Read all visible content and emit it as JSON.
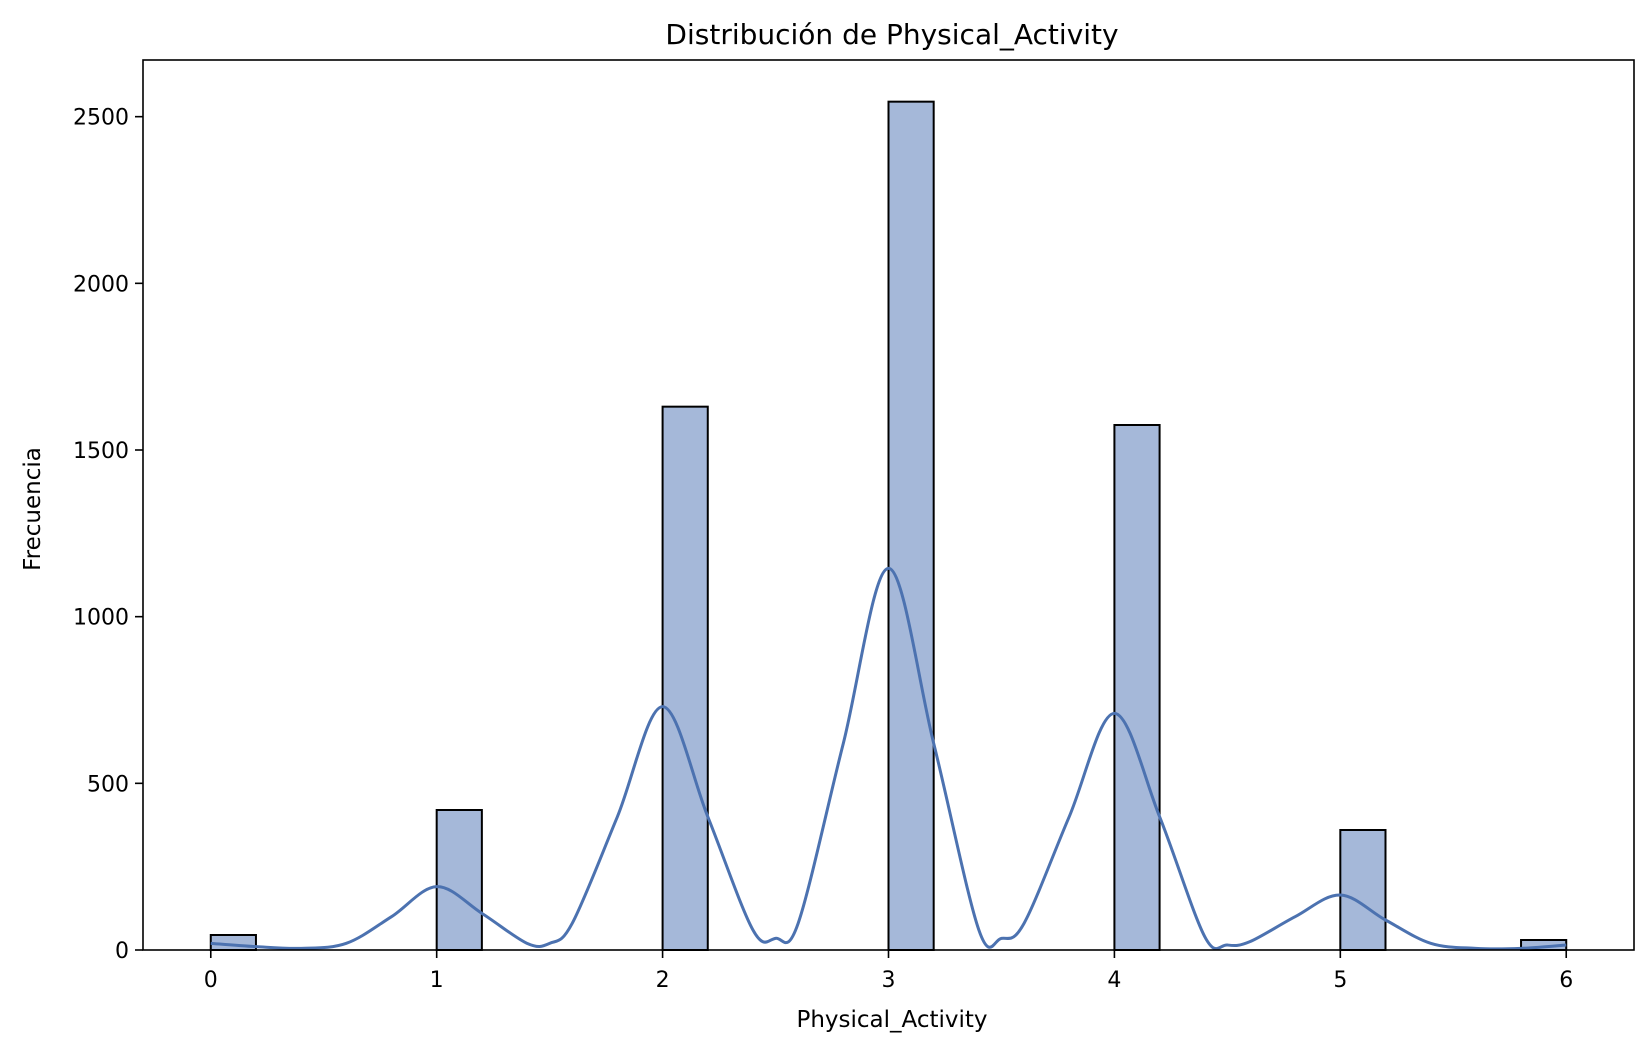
{
  "chart_data": {
    "type": "bar",
    "title": "Distribución de Physical_Activity",
    "xlabel": "Physical_Activity",
    "ylabel": "Frecuencia",
    "xlim": [
      -0.3,
      6.3
    ],
    "ylim": [
      0,
      2670
    ],
    "xticks": [
      0,
      1,
      2,
      3,
      4,
      5,
      6
    ],
    "yticks": [
      0,
      500,
      1000,
      1500,
      2000,
      2500
    ],
    "bin_width": 0.2,
    "bars": [
      {
        "x_start": 0.0,
        "value": 45
      },
      {
        "x_start": 1.0,
        "value": 420
      },
      {
        "x_start": 2.0,
        "value": 1630
      },
      {
        "x_start": 3.0,
        "value": 2545
      },
      {
        "x_start": 4.0,
        "value": 1575
      },
      {
        "x_start": 5.0,
        "value": 360
      },
      {
        "x_start": 5.8,
        "value": 30
      }
    ],
    "kde": {
      "name": "KDE",
      "x": [
        0.0,
        0.2,
        0.4,
        0.6,
        0.8,
        1.0,
        1.2,
        1.4,
        1.5,
        1.6,
        1.8,
        2.0,
        2.2,
        2.4,
        2.5,
        2.6,
        2.8,
        3.0,
        3.2,
        3.4,
        3.5,
        3.6,
        3.8,
        4.0,
        4.2,
        4.4,
        4.5,
        4.6,
        4.8,
        5.0,
        5.2,
        5.4,
        5.6,
        5.8,
        6.0
      ],
      "y": [
        20,
        10,
        5,
        20,
        100,
        190,
        110,
        20,
        20,
        80,
        400,
        730,
        400,
        60,
        35,
        80,
        620,
        1145,
        620,
        60,
        35,
        80,
        400,
        710,
        400,
        40,
        15,
        25,
        100,
        165,
        90,
        20,
        5,
        5,
        15
      ]
    },
    "grid": false,
    "legend": "none",
    "colors": {
      "bar_fill": "#a5b8d9",
      "bar_edge": "#000000",
      "kde_line": "#4c72b0",
      "axes": "#000000"
    }
  }
}
